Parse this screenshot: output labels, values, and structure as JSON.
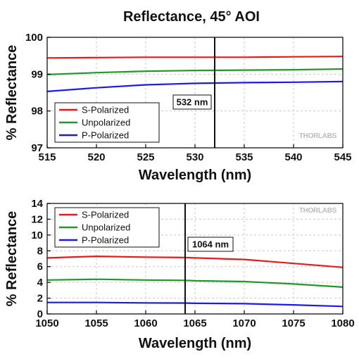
{
  "title": "Reflectance, 45° AOI",
  "watermark": "THORLABS",
  "chart_data": [
    {
      "type": "line",
      "xlabel": "Wavelength (nm)",
      "ylabel": "% Reflectance",
      "xlim": [
        515,
        545
      ],
      "ylim": [
        97,
        100
      ],
      "xticks": [
        515,
        520,
        525,
        530,
        535,
        540,
        545
      ],
      "yticks": [
        97,
        98,
        99,
        100
      ],
      "grid": true,
      "legend_position": "lower-left",
      "marker": {
        "x": 532,
        "label": "532 nm"
      },
      "x": [
        515,
        520,
        525,
        530,
        535,
        540,
        545
      ],
      "series": [
        {
          "name": "S-Polarized",
          "color": "#e8191a",
          "values": [
            99.44,
            99.45,
            99.46,
            99.46,
            99.46,
            99.47,
            99.48
          ]
        },
        {
          "name": "Unpolarized",
          "color": "#1f9a2a",
          "values": [
            98.99,
            99.04,
            99.08,
            99.1,
            99.11,
            99.12,
            99.14
          ]
        },
        {
          "name": "P-Polarized",
          "color": "#1a1aee",
          "values": [
            98.53,
            98.63,
            98.71,
            98.75,
            98.77,
            98.78,
            98.8
          ]
        }
      ]
    },
    {
      "type": "line",
      "xlabel": "Wavelength (nm)",
      "ylabel": "% Reflectance",
      "xlim": [
        1050,
        1080
      ],
      "ylim": [
        0,
        14
      ],
      "xticks": [
        1050,
        1055,
        1060,
        1065,
        1070,
        1075,
        1080
      ],
      "yticks": [
        0,
        2,
        4,
        6,
        8,
        10,
        12,
        14
      ],
      "grid": true,
      "legend_position": "top-left",
      "marker": {
        "x": 1064,
        "label": "1064 nm"
      },
      "x": [
        1050,
        1055,
        1060,
        1064,
        1065,
        1070,
        1075,
        1080
      ],
      "series": [
        {
          "name": "S-Polarized",
          "color": "#e8191a",
          "values": [
            7.1,
            7.3,
            7.2,
            7.15,
            7.1,
            6.9,
            6.4,
            5.9
          ]
        },
        {
          "name": "Unpolarized",
          "color": "#1f9a2a",
          "values": [
            4.3,
            4.4,
            4.3,
            4.25,
            4.2,
            4.1,
            3.8,
            3.4
          ]
        },
        {
          "name": "P-Polarized",
          "color": "#1a1aee",
          "values": [
            1.45,
            1.45,
            1.4,
            1.38,
            1.35,
            1.3,
            1.15,
            0.95
          ]
        }
      ]
    }
  ]
}
